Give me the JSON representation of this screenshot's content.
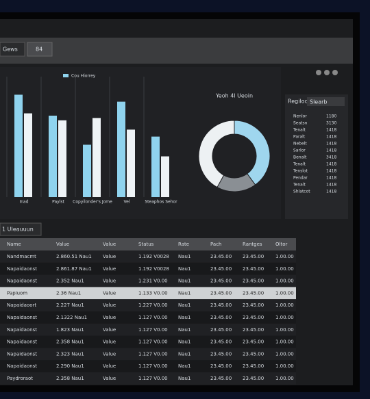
{
  "toolbar": {
    "dropdown_1": "Gews",
    "dropdown_2": "84"
  },
  "chart_data": [
    {
      "type": "bar",
      "categories": [
        "Inad",
        "Paylst",
        "Copyilonder's Jome",
        "Vel",
        "Steaphos Sehor"
      ],
      "series": [
        {
          "name": "Cou Hiorrey",
          "color": "#8fd3ee",
          "values": [
            88,
            70,
            45,
            82,
            52
          ]
        },
        {
          "color": "#eef3f6",
          "values": [
            72,
            66,
            68,
            58,
            35
          ]
        }
      ],
      "ylim": [
        0,
        100
      ],
      "grid": true
    },
    {
      "type": "donut",
      "title": "Yeoh 4l Ueoin",
      "values": [
        40,
        18,
        42
      ],
      "colors": [
        "#9fd6ee",
        "#8a8f94",
        "#edf1f3"
      ]
    }
  ],
  "side_panel": {
    "title": "Regiloc",
    "search": "Slearb",
    "rows": [
      [
        "Nenlor",
        "1180"
      ],
      [
        "Seatsn",
        "3130"
      ],
      [
        "Tenalt",
        "1418"
      ],
      [
        "Paralt",
        "1418"
      ],
      [
        "Nebelt",
        "1418"
      ],
      [
        "Sarlor",
        "1418"
      ],
      [
        "Benalt",
        "3418"
      ],
      [
        "Tenalt",
        "1418"
      ],
      [
        "Tenslot",
        "1418"
      ],
      [
        "Pendar",
        "1418"
      ],
      [
        "Tenalt",
        "1418"
      ],
      [
        "Shlatcot",
        "1418"
      ]
    ]
  },
  "section": "1 Uleauuun",
  "table": {
    "columns": [
      "Name",
      "Value",
      "Value",
      "Status",
      "Rate",
      "Pach",
      "Rantges",
      "Oltor"
    ],
    "rows": [
      [
        "Nandmacmt",
        "2.860.51 Nau1",
        "Value",
        "1.192 V0028",
        "Nau1",
        "23.45.00",
        "23.45.00",
        "1.00.00"
      ],
      [
        "Napaidaonst",
        "2.861.87 Nau1",
        "Value",
        "1.192 V0028",
        "Nau1",
        "23.45.00",
        "23.45.00",
        "1.00.00"
      ],
      [
        "Napaidaonst",
        "2.352 Nau1",
        "Value",
        "1.231 V0.00",
        "Nau1",
        "23.45.00",
        "23.45.00",
        "1.00.00"
      ],
      [
        "Papiuom",
        "2.36 Nau1",
        "Value",
        "1.133 V0.00",
        "Nau1",
        "23.45.00",
        "23.45.00",
        "1.00.00"
      ],
      [
        "Napaidaoort",
        "2.227 Nau1",
        "Value",
        "1.227 V0.00",
        "Nau1",
        "23.45.00",
        "23.45.00",
        "1.00.00"
      ],
      [
        "Napaidaonst",
        "2.1322 Nau1",
        "Value",
        "1.127 V0.00",
        "Nau1",
        "23.45.00",
        "23.45.00",
        "1.00.00"
      ],
      [
        "Napaidaonst",
        "1.823 Nau1",
        "Value",
        "1.127 V0.00",
        "Nau1",
        "23.45.00",
        "23.45.00",
        "1.00.00"
      ],
      [
        "Napaidaonst",
        "2.358 Nau1",
        "Value",
        "1.127 V0.00",
        "Nau1",
        "23.45.00",
        "23.45.00",
        "1.00.00"
      ],
      [
        "Napaidaonst",
        "2.323 Nau1",
        "Value",
        "1.127 V0.00",
        "Nau1",
        "23.45.00",
        "23.45.00",
        "1.00.00"
      ],
      [
        "Napaidaonst",
        "2.290 Nau1",
        "Value",
        "1.127 V0.00",
        "Nau1",
        "23.45.00",
        "23.45.00",
        "1.00.00"
      ],
      [
        "Paydroraot",
        "2.358 Nau1",
        "Value",
        "1.127 V0.00",
        "Nau1",
        "23.45.00",
        "23.45.00",
        "1.00.00"
      ]
    ]
  }
}
